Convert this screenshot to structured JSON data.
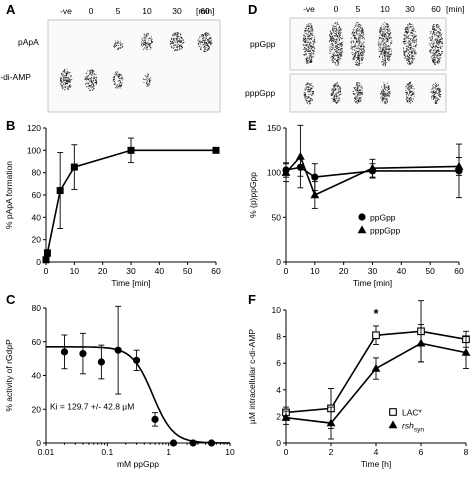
{
  "panels": {
    "A": {
      "label": "A",
      "lanes": [
        "-ve",
        "0",
        "5",
        "10",
        "30",
        "60"
      ],
      "unit": "[min]",
      "rows": [
        "pApA",
        "c-di-AMP"
      ]
    },
    "D": {
      "label": "D",
      "lanes": [
        "-ve",
        "0",
        "5",
        "10",
        "30",
        "60"
      ],
      "unit": "[min]",
      "rows": [
        "ppGpp",
        "pppGpp"
      ]
    }
  },
  "chart_data": [
    {
      "panel": "B",
      "type": "line",
      "xlabel": "Time [min]",
      "ylabel": "% pApA formation",
      "xlim": [
        0,
        60
      ],
      "ylim": [
        0,
        120
      ],
      "xticks": [
        0,
        10,
        20,
        30,
        40,
        50,
        60
      ],
      "yticks": [
        0,
        20,
        40,
        60,
        80,
        100,
        120
      ],
      "series": [
        {
          "marker": "square",
          "x": [
            0,
            0.5,
            5,
            10,
            30,
            60
          ],
          "y": [
            2,
            8,
            64,
            85,
            100,
            100
          ],
          "err": [
            1,
            3,
            34,
            20,
            11,
            2
          ]
        }
      ]
    },
    {
      "panel": "C",
      "type": "scatter",
      "xscale": "log",
      "xlabel": "mM ppGpp",
      "ylabel": "% activity of rGdpP",
      "xlim": [
        0.01,
        10
      ],
      "ylim": [
        0,
        80
      ],
      "xticks": [
        0.01,
        0.1,
        1,
        10
      ],
      "xtick_labels": [
        "0.01",
        "0.1",
        "1",
        "10"
      ],
      "yticks": [
        0,
        20,
        40,
        60,
        80
      ],
      "annotation": "Ki = 129.7 +/- 42.8 µM",
      "fit": {
        "top": 57,
        "ic50": 0.55,
        "hill": 2.6
      },
      "series": [
        {
          "marker": "circle",
          "x": [
            0.02,
            0.04,
            0.08,
            0.15,
            0.3,
            0.6,
            1.2,
            2.5,
            5
          ],
          "y": [
            54,
            53,
            48,
            55,
            49,
            14,
            0,
            0,
            0
          ],
          "err": [
            10,
            12,
            10,
            26,
            6,
            4,
            0,
            0,
            0
          ]
        }
      ]
    },
    {
      "panel": "E",
      "type": "line",
      "xlabel": "Time [min]",
      "ylabel": "% (p)ppGpp",
      "xlim": [
        0,
        60
      ],
      "ylim": [
        0,
        150
      ],
      "xticks": [
        0,
        10,
        20,
        30,
        40,
        50,
        60
      ],
      "yticks": [
        0,
        50,
        100,
        150
      ],
      "legend": "center-right",
      "series": [
        {
          "name": "ppGpp",
          "marker": "circle",
          "x": [
            0,
            5,
            10,
            30,
            60
          ],
          "y": [
            103,
            106,
            95,
            102,
            102
          ],
          "err": [
            8,
            10,
            15,
            8,
            30
          ]
        },
        {
          "name": "pppGpp",
          "marker": "triangle",
          "x": [
            0,
            5,
            10,
            30,
            60
          ],
          "y": [
            100,
            118,
            75,
            105,
            107
          ],
          "err": [
            10,
            35,
            15,
            10,
            10
          ]
        }
      ]
    },
    {
      "panel": "F",
      "type": "line",
      "xlabel": "Time [h]",
      "ylabel": "µM intracellular c-di-AMP",
      "xlim": [
        0,
        8
      ],
      "ylim": [
        0,
        10
      ],
      "xticks": [
        0,
        2,
        4,
        6,
        8
      ],
      "yticks": [
        0,
        2,
        4,
        6,
        8,
        10
      ],
      "annotation": "*",
      "annotation_x": 4,
      "legend": "bottom-right",
      "series": [
        {
          "name": "LAC*",
          "marker": "square-open",
          "x": [
            0,
            2,
            4,
            6,
            8
          ],
          "y": [
            2.3,
            2.6,
            8.1,
            8.4,
            7.8
          ],
          "err": [
            0.4,
            1.5,
            0.7,
            2.3,
            0.6
          ]
        },
        {
          "name": "rsh",
          "name_sub": "syn",
          "marker": "triangle",
          "x": [
            0,
            2,
            4,
            6,
            8
          ],
          "y": [
            1.9,
            1.5,
            5.6,
            7.5,
            6.8
          ],
          "err": [
            0.5,
            1.2,
            0.8,
            1.4,
            1.2
          ]
        }
      ]
    }
  ]
}
